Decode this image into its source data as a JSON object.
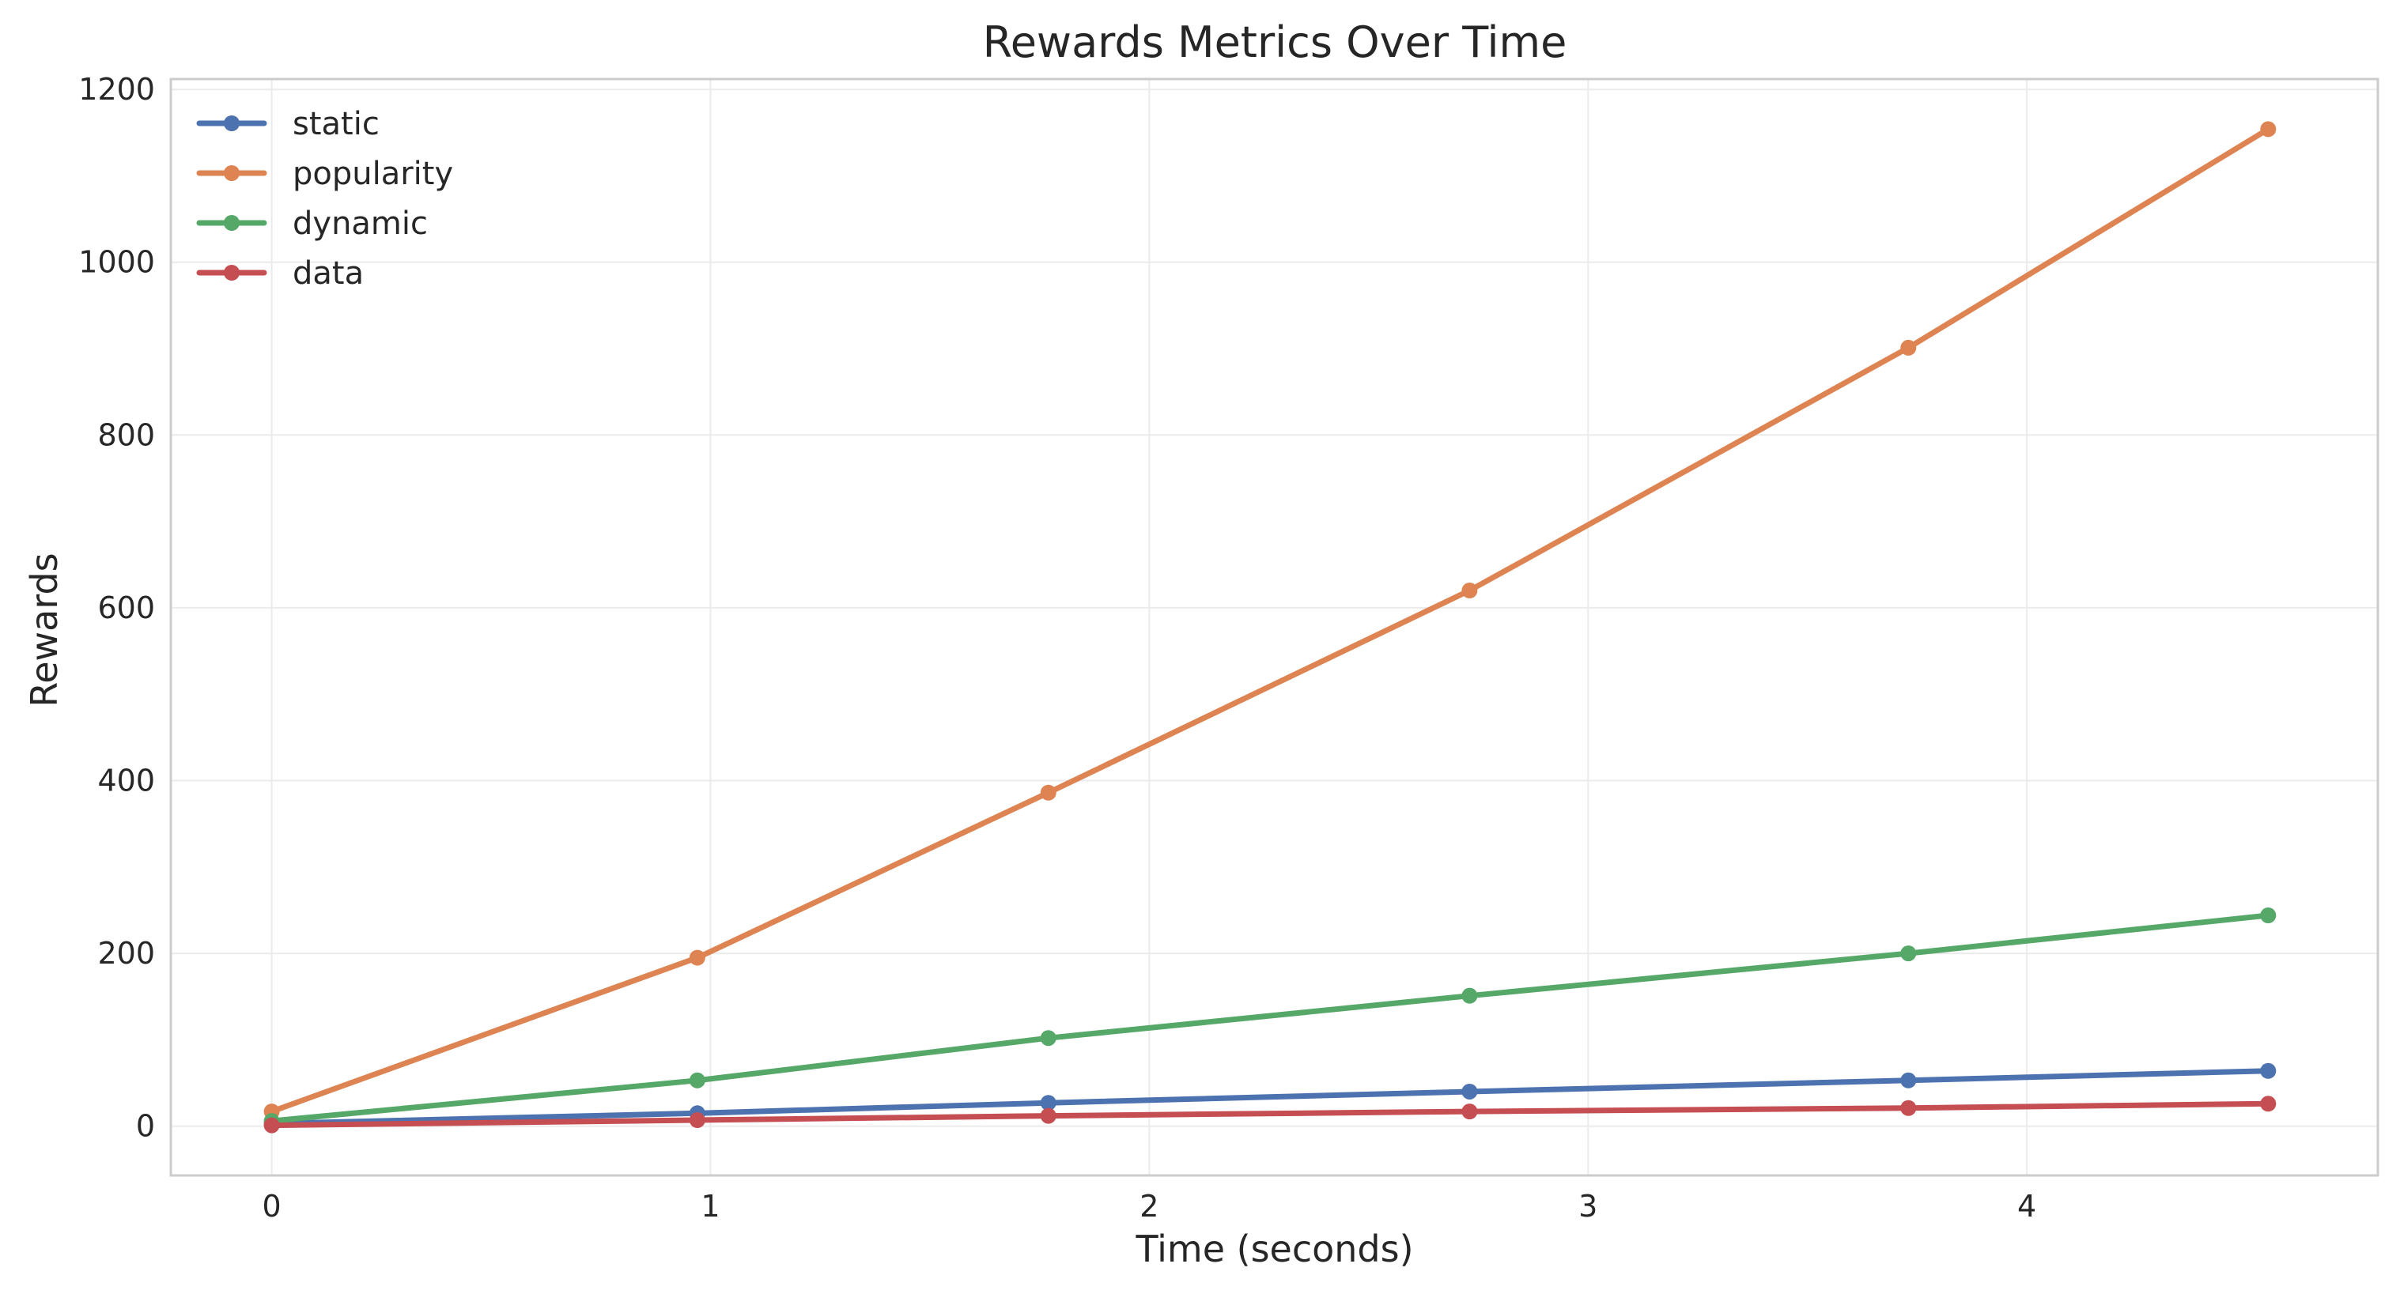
{
  "chart_data": {
    "type": "line",
    "title": "Rewards Metrics Over Time",
    "xlabel": "Time (seconds)",
    "ylabel": "Rewards",
    "xlim": [
      -0.23,
      4.8
    ],
    "ylim": [
      -57,
      1212
    ],
    "xticks": [
      0,
      1,
      2,
      3,
      4
    ],
    "yticks": [
      0,
      200,
      400,
      600,
      800,
      1000,
      1200
    ],
    "grid": true,
    "legend_position": "top-left",
    "x": [
      0,
      0.97,
      1.77,
      2.73,
      3.73,
      4.55
    ],
    "series": [
      {
        "name": "static",
        "color": "#4c72b0",
        "values": [
          3,
          15,
          27,
          40,
          53,
          64
        ]
      },
      {
        "name": "popularity",
        "color": "#dd8452",
        "values": [
          17,
          195,
          386,
          620,
          901,
          1154
        ]
      },
      {
        "name": "dynamic",
        "color": "#55a868",
        "values": [
          6,
          53,
          102,
          151,
          200,
          244
        ]
      },
      {
        "name": "data",
        "color": "#c44e52",
        "values": [
          1,
          7,
          12,
          17,
          21,
          26
        ]
      }
    ]
  }
}
